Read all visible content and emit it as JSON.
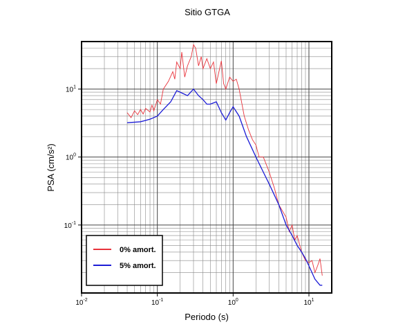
{
  "chart_data": {
    "type": "line",
    "title": "Sitio GTGA",
    "xlabel": "Periodo (s)",
    "ylabel": "PSA (cm/s²)",
    "xscale": "log",
    "yscale": "log",
    "xlim": [
      0.01,
      20
    ],
    "ylim": [
      0.01,
      50
    ],
    "xticks": [
      {
        "value": 0.01,
        "label": "10",
        "exponent": "-2"
      },
      {
        "value": 0.1,
        "label": "10",
        "exponent": "-1"
      },
      {
        "value": 1,
        "label": "10",
        "exponent": "0"
      },
      {
        "value": 10,
        "label": "10",
        "exponent": "1"
      }
    ],
    "yticks": [
      {
        "value": 0.1,
        "label": "10",
        "exponent": "-1"
      },
      {
        "value": 1,
        "label": "10",
        "exponent": "0"
      },
      {
        "value": 10,
        "label": "10",
        "exponent": "1"
      }
    ],
    "grid": true,
    "legend": "lower left",
    "series": [
      {
        "name": "0% amort.",
        "color": "#e8323a",
        "x": [
          0.04,
          0.045,
          0.05,
          0.055,
          0.06,
          0.065,
          0.07,
          0.08,
          0.085,
          0.09,
          0.1,
          0.11,
          0.12,
          0.14,
          0.16,
          0.17,
          0.18,
          0.2,
          0.21,
          0.23,
          0.25,
          0.28,
          0.3,
          0.32,
          0.35,
          0.38,
          0.4,
          0.45,
          0.5,
          0.55,
          0.6,
          0.65,
          0.7,
          0.75,
          0.8,
          0.9,
          1.0,
          1.1,
          1.2,
          1.4,
          1.6,
          1.8,
          2.0,
          2.2,
          2.5,
          3,
          3.5,
          4,
          5,
          5.5,
          6,
          6.5,
          7,
          8,
          9,
          10,
          11,
          12,
          13,
          14,
          15
        ],
        "values": [
          4.5,
          3.8,
          4.8,
          4.2,
          5,
          4.3,
          5.2,
          4.6,
          5.8,
          4.8,
          7,
          6,
          10,
          13,
          18,
          14,
          25,
          20,
          35,
          15,
          22,
          30,
          45,
          40,
          22,
          30,
          20,
          28,
          20,
          25,
          12,
          18,
          26,
          12,
          10,
          15,
          13,
          14,
          10,
          4,
          2.5,
          1.8,
          1.5,
          1.0,
          1.0,
          0.6,
          0.35,
          0.2,
          0.13,
          0.08,
          0.1,
          0.06,
          0.07,
          0.04,
          0.03,
          0.028,
          0.03,
          0.02,
          0.025,
          0.032,
          0.018
        ]
      },
      {
        "name": "5% amort.",
        "color": "#1c1cd6",
        "x": [
          0.04,
          0.06,
          0.08,
          0.1,
          0.12,
          0.15,
          0.18,
          0.2,
          0.25,
          0.3,
          0.35,
          0.4,
          0.45,
          0.5,
          0.6,
          0.7,
          0.8,
          0.9,
          1.0,
          1.2,
          1.5,
          2,
          2.5,
          3,
          4,
          5,
          6,
          7,
          8,
          9,
          10,
          12,
          14,
          15
        ],
        "values": [
          3.2,
          3.3,
          3.6,
          4.0,
          5,
          6.5,
          9.5,
          9,
          8,
          10,
          8,
          7,
          6,
          6,
          6.5,
          4.5,
          3.5,
          4.5,
          5.5,
          4,
          2.0,
          1.0,
          0.6,
          0.4,
          0.2,
          0.1,
          0.07,
          0.05,
          0.04,
          0.032,
          0.025,
          0.016,
          0.013,
          0.013
        ]
      }
    ]
  }
}
